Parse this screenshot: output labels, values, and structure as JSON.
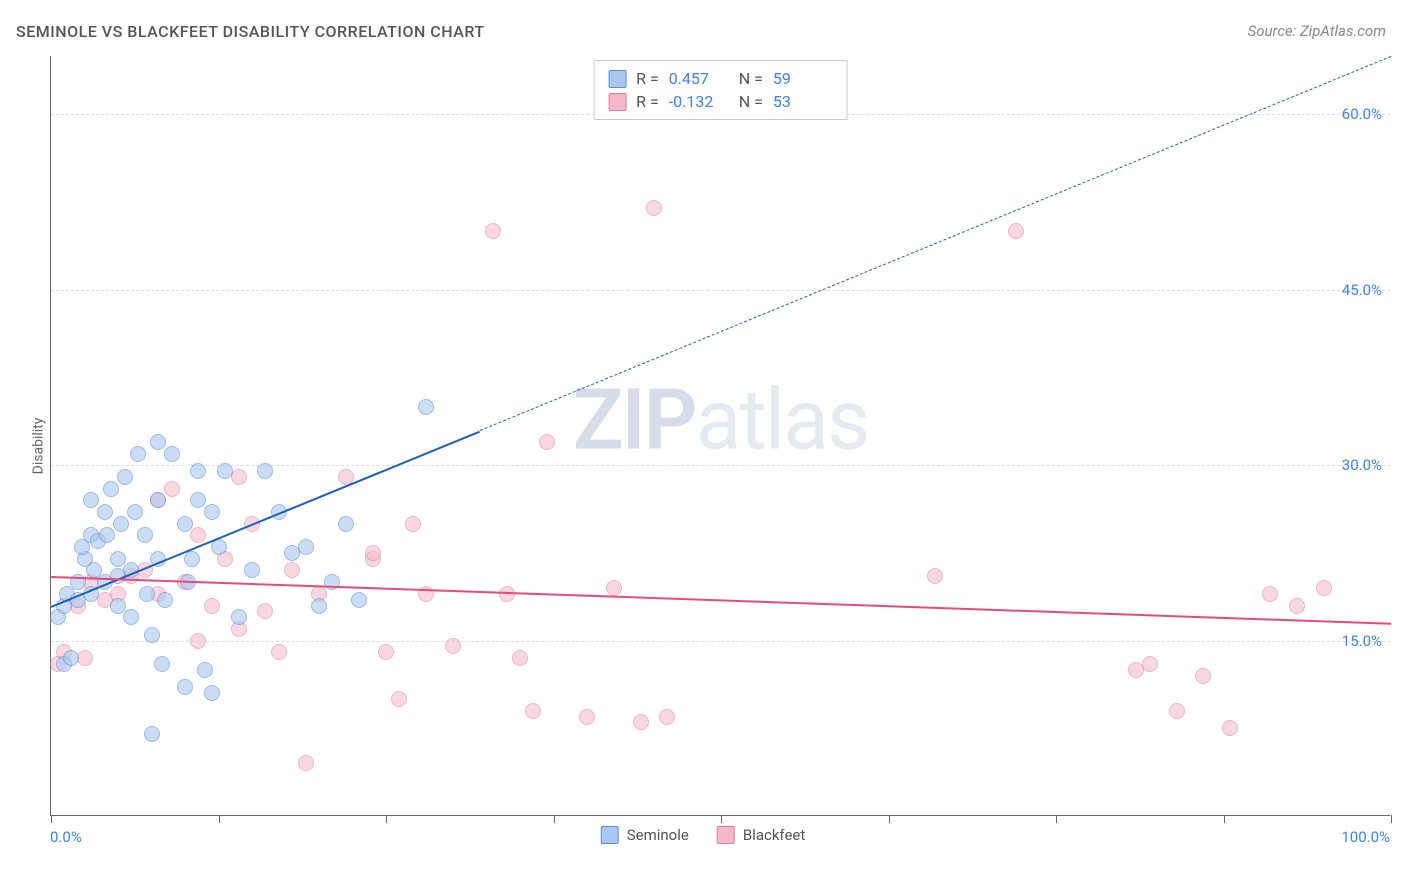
{
  "title": "SEMINOLE VS BLACKFEET DISABILITY CORRELATION CHART",
  "source": "Source: ZipAtlas.com",
  "y_axis_label": "Disability",
  "watermark_bold": "ZIP",
  "watermark_light": "atlas",
  "chart": {
    "type": "scatter",
    "background_color": "#ffffff",
    "grid_color": "#dddddd",
    "axis_color": "#666666",
    "xlim": [
      0,
      100
    ],
    "ylim": [
      0,
      65
    ],
    "x_ticks": [
      0,
      12.5,
      25,
      37.5,
      50,
      62.5,
      75,
      87.5,
      100
    ],
    "x_tick_labels": {
      "left": "0.0%",
      "right": "100.0%"
    },
    "y_grid": [
      15,
      30,
      45,
      60
    ],
    "y_tick_labels": [
      "15.0%",
      "30.0%",
      "45.0%",
      "60.0%"
    ],
    "label_color": "#3b82f6",
    "label_fontsize": 15,
    "point_radius": 8,
    "series": [
      {
        "name": "Seminole",
        "fill": "#a8c8f0",
        "stroke": "#5b8dd6",
        "fill_opacity": 0.6,
        "r_value": "0.457",
        "n_value": "59",
        "trend": {
          "x0": 0,
          "y0": 18,
          "x1": 32,
          "y1": 33,
          "color": "#1e5fbf",
          "dash_extend": true,
          "x2": 100,
          "y2": 65
        },
        "points": [
          [
            0.5,
            17
          ],
          [
            1,
            18
          ],
          [
            1.2,
            19
          ],
          [
            1,
            13
          ],
          [
            1.5,
            13.5
          ],
          [
            2,
            20
          ],
          [
            2,
            18.5
          ],
          [
            2.5,
            22
          ],
          [
            2.3,
            23
          ],
          [
            3,
            19
          ],
          [
            3,
            24
          ],
          [
            3.2,
            21
          ],
          [
            3.5,
            23.5
          ],
          [
            3,
            27
          ],
          [
            4,
            20
          ],
          [
            4,
            26
          ],
          [
            4.2,
            24
          ],
          [
            4.5,
            28
          ],
          [
            5,
            22
          ],
          [
            5,
            20.5
          ],
          [
            5,
            18
          ],
          [
            5.2,
            25
          ],
          [
            5.5,
            29
          ],
          [
            6,
            17
          ],
          [
            6,
            21
          ],
          [
            6.3,
            26
          ],
          [
            6.5,
            31
          ],
          [
            7,
            24
          ],
          [
            7.2,
            19
          ],
          [
            7.5,
            15.5
          ],
          [
            8,
            27
          ],
          [
            8,
            22
          ],
          [
            8.3,
            13
          ],
          [
            8.5,
            18.5
          ],
          [
            9,
            31
          ],
          [
            10,
            25
          ],
          [
            10.2,
            20
          ],
          [
            10.5,
            22
          ],
          [
            11,
            27
          ],
          [
            11,
            29.5
          ],
          [
            12,
            26
          ],
          [
            12.5,
            23
          ],
          [
            13,
            29.5
          ],
          [
            14,
            17
          ],
          [
            15,
            21
          ],
          [
            16,
            29.5
          ],
          [
            17,
            26
          ],
          [
            18,
            22.5
          ],
          [
            19,
            23
          ],
          [
            20,
            18
          ],
          [
            21,
            20
          ],
          [
            22,
            25
          ],
          [
            23,
            18.5
          ],
          [
            7.5,
            7
          ],
          [
            10,
            11
          ],
          [
            11.5,
            12.5
          ],
          [
            12,
            10.5
          ],
          [
            28,
            35
          ],
          [
            8,
            32
          ]
        ]
      },
      {
        "name": "Blackfeet",
        "fill": "#f5b8c8",
        "stroke": "#e07a9e",
        "fill_opacity": 0.55,
        "r_value": "-0.132",
        "n_value": "53",
        "trend": {
          "x0": 0,
          "y0": 20.5,
          "x1": 100,
          "y1": 16.5,
          "color": "#e84a7a",
          "dash_extend": false
        },
        "points": [
          [
            0.5,
            13
          ],
          [
            1,
            14
          ],
          [
            2,
            18
          ],
          [
            2.5,
            13.5
          ],
          [
            3,
            20
          ],
          [
            4,
            18.5
          ],
          [
            5,
            19
          ],
          [
            6,
            20.5
          ],
          [
            7,
            21
          ],
          [
            8,
            19
          ],
          [
            9,
            28
          ],
          [
            10,
            20
          ],
          [
            11,
            15
          ],
          [
            12,
            18
          ],
          [
            13,
            22
          ],
          [
            14,
            16
          ],
          [
            15,
            25
          ],
          [
            16,
            17.5
          ],
          [
            17,
            14
          ],
          [
            18,
            21
          ],
          [
            19,
            4.5
          ],
          [
            20,
            19
          ],
          [
            22,
            29
          ],
          [
            24,
            22
          ],
          [
            25,
            14
          ],
          [
            26,
            10
          ],
          [
            27,
            25
          ],
          [
            28,
            19
          ],
          [
            30,
            14.5
          ],
          [
            33,
            50
          ],
          [
            34,
            19
          ],
          [
            35,
            13.5
          ],
          [
            36,
            9
          ],
          [
            37,
            32
          ],
          [
            40,
            8.5
          ],
          [
            42,
            19.5
          ],
          [
            44,
            8
          ],
          [
            45,
            52
          ],
          [
            66,
            20.5
          ],
          [
            72,
            50
          ],
          [
            81,
            12.5
          ],
          [
            82,
            13
          ],
          [
            84,
            9
          ],
          [
            86,
            12
          ],
          [
            88,
            7.5
          ],
          [
            91,
            19
          ],
          [
            93,
            18
          ],
          [
            95,
            19.5
          ],
          [
            46,
            8.5
          ],
          [
            8,
            27
          ],
          [
            14,
            29
          ],
          [
            24,
            22.5
          ],
          [
            11,
            24
          ]
        ]
      }
    ],
    "legend": {
      "items": [
        {
          "label": "Seminole",
          "fill": "#a8c8f0",
          "stroke": "#5b8dd6"
        },
        {
          "label": "Blackfeet",
          "fill": "#f5b8c8",
          "stroke": "#e07a9e"
        }
      ]
    },
    "stats_box": {
      "r_label": "R =",
      "n_label": "N ="
    }
  }
}
